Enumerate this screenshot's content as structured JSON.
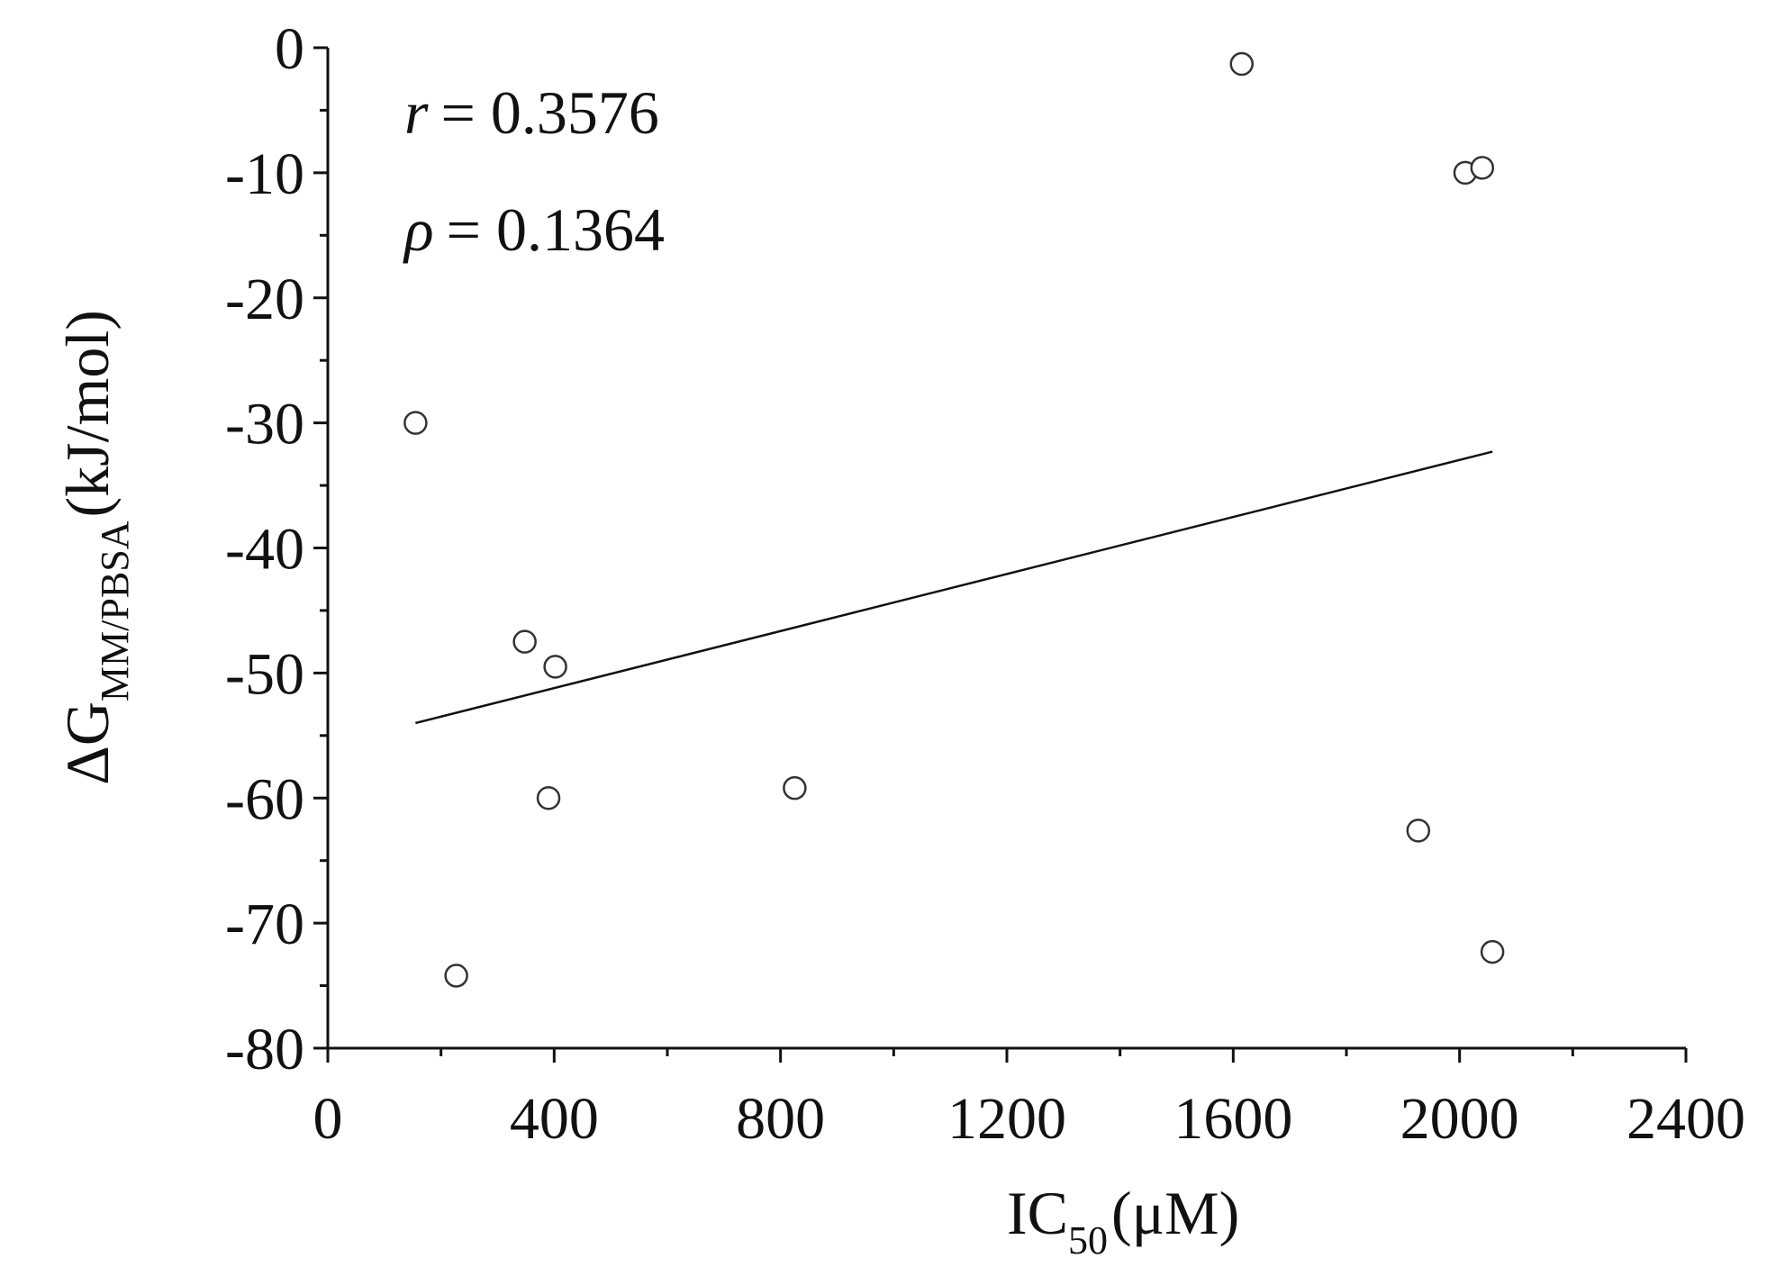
{
  "chart_data": {
    "type": "scatter",
    "annotations": [
      {
        "symbol": "r",
        "text": "= 0.3576"
      },
      {
        "symbol": "ρ",
        "text": "= 0.1364"
      }
    ],
    "xlabel": {
      "main": "IC",
      "sub": "50",
      "unit": "(μM)"
    },
    "ylabel": {
      "main": "ΔG",
      "sub": "MM/PBSA",
      "unit": "(kJ/mol)"
    },
    "x": [
      155,
      227,
      348,
      402,
      390,
      825,
      1615,
      1927,
      2010,
      2040,
      2058
    ],
    "values": [
      -30,
      -74.2,
      -47.5,
      -49.5,
      -60,
      -59.2,
      -1.3,
      -62.6,
      -10,
      -9.6,
      -72.3
    ],
    "marker_color": "#333333",
    "fit": {
      "x": [
        155,
        2058
      ],
      "y": [
        -54.0,
        -32.3
      ],
      "color": "#111111"
    },
    "xlim": [
      0,
      2400
    ],
    "xticks": [
      0,
      400,
      800,
      1200,
      1600,
      2000,
      2400
    ],
    "ylim": [
      -80,
      0
    ],
    "yticks": [
      0,
      -10,
      -20,
      -30,
      -40,
      -50,
      -60,
      -70,
      -80
    ]
  }
}
